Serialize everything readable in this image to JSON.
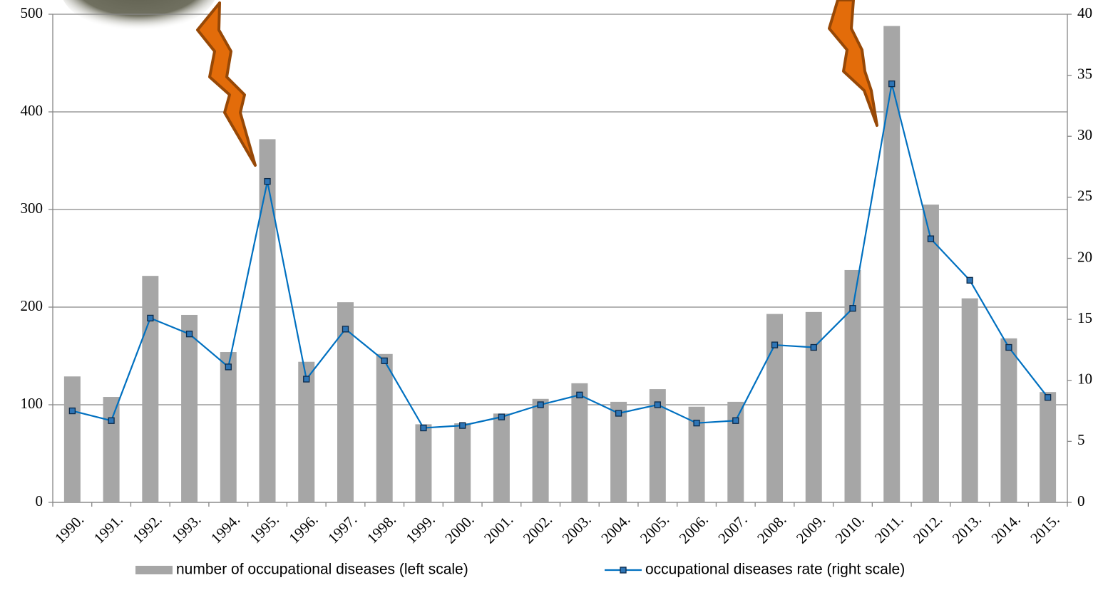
{
  "chart_data": {
    "type": "bar-line",
    "categories": [
      "1990.",
      "1991.",
      "1992.",
      "1993.",
      "1994.",
      "1995.",
      "1996.",
      "1997.",
      "1998.",
      "1999.",
      "2000.",
      "2001.",
      "2002.",
      "2003.",
      "2004.",
      "2005.",
      "2006.",
      "2007.",
      "2008.",
      "2009.",
      "2010.",
      "2011.",
      "2012.",
      "2013.",
      "2014.",
      "2015."
    ],
    "series": [
      {
        "name": "number of occupational diseases (left scale)",
        "type": "bar",
        "color": "#a6a6a6",
        "values": [
          129,
          108,
          232,
          192,
          154,
          372,
          144,
          205,
          152,
          80,
          81,
          91,
          106,
          122,
          103,
          116,
          98,
          103,
          193,
          195,
          238,
          488,
          305,
          209,
          168,
          113
        ]
      },
      {
        "name": "occupational diseases rate (right scale)",
        "type": "line",
        "axis": "y2",
        "color": "#0070c0",
        "values": [
          7.5,
          6.7,
          15.1,
          13.8,
          11.1,
          26.3,
          10.1,
          14.2,
          11.6,
          6.1,
          6.3,
          7.0,
          8.0,
          8.8,
          7.3,
          8.0,
          6.5,
          6.7,
          12.9,
          12.7,
          15.9,
          34.3,
          21.6,
          18.2,
          12.7,
          8.6
        ]
      }
    ],
    "ylim": [
      0,
      500
    ],
    "yticks": [
      0,
      100,
      200,
      300,
      400,
      500
    ],
    "y2lim": [
      0,
      40
    ],
    "y2ticks": [
      0,
      5,
      10,
      15,
      20,
      25,
      30,
      35,
      40
    ],
    "grid": true,
    "legend": "bottom"
  }
}
